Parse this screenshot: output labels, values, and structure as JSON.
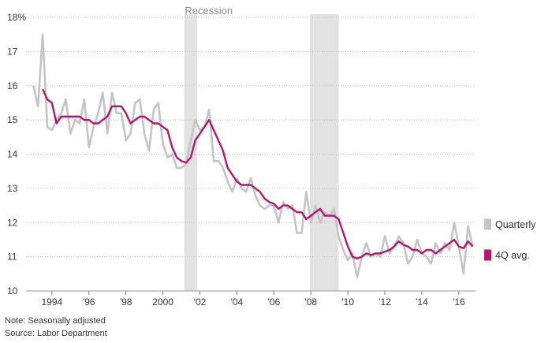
{
  "chart_data": {
    "type": "line",
    "title": "",
    "xlabel": "",
    "ylabel": "",
    "ylim": [
      10,
      18
    ],
    "xlim": [
      1992.6,
      2016.9
    ],
    "y_ticks": [
      10,
      11,
      12,
      13,
      14,
      15,
      16,
      17,
      18
    ],
    "y_tick_labels": [
      "10",
      "11",
      "12",
      "13",
      "14",
      "15",
      "16",
      "17",
      "18%"
    ],
    "x_ticks": [
      1994,
      1996,
      1998,
      2000,
      2002,
      2004,
      2006,
      2008,
      2010,
      2012,
      2014,
      2016
    ],
    "x_tick_labels": [
      "1994",
      "'96",
      "'98",
      "2000",
      "'02",
      "'04",
      "'06",
      "'08",
      "'10",
      "'12",
      "'14",
      "'16"
    ],
    "recession_label": "Recession",
    "recessions": [
      [
        2001.15,
        2001.85
      ],
      [
        2007.95,
        2009.5
      ]
    ],
    "grid": true,
    "legend_position": "right",
    "series": [
      {
        "name": "Quarterly",
        "color": "#c4c4c4",
        "points": [
          [
            1993.0,
            16.0
          ],
          [
            1993.25,
            15.4
          ],
          [
            1993.5,
            17.5
          ],
          [
            1993.75,
            14.8
          ],
          [
            1994.0,
            14.7
          ],
          [
            1994.25,
            15.0
          ],
          [
            1994.5,
            15.2
          ],
          [
            1994.75,
            15.6
          ],
          [
            1995.0,
            14.6
          ],
          [
            1995.25,
            15.0
          ],
          [
            1995.5,
            14.9
          ],
          [
            1995.75,
            15.6
          ],
          [
            1996.0,
            14.2
          ],
          [
            1996.25,
            14.8
          ],
          [
            1996.5,
            15.2
          ],
          [
            1996.75,
            15.8
          ],
          [
            1997.0,
            14.6
          ],
          [
            1997.25,
            15.8
          ],
          [
            1997.5,
            15.2
          ],
          [
            1997.75,
            15.2
          ],
          [
            1998.0,
            14.4
          ],
          [
            1998.25,
            14.6
          ],
          [
            1998.5,
            15.5
          ],
          [
            1998.75,
            15.6
          ],
          [
            1999.0,
            14.6
          ],
          [
            1999.25,
            14.1
          ],
          [
            1999.5,
            15.3
          ],
          [
            1999.75,
            15.5
          ],
          [
            2000.0,
            14.3
          ],
          [
            2000.25,
            13.9
          ],
          [
            2000.5,
            14.0
          ],
          [
            2000.75,
            13.6
          ],
          [
            2001.0,
            13.6
          ],
          [
            2001.25,
            13.7
          ],
          [
            2001.5,
            14.4
          ],
          [
            2001.75,
            15.0
          ],
          [
            2002.0,
            14.7
          ],
          [
            2002.25,
            14.8
          ],
          [
            2002.5,
            15.3
          ],
          [
            2002.75,
            13.8
          ],
          [
            2003.0,
            13.8
          ],
          [
            2003.25,
            13.6
          ],
          [
            2003.5,
            13.2
          ],
          [
            2003.75,
            12.9
          ],
          [
            2004.0,
            13.3
          ],
          [
            2004.25,
            13.0
          ],
          [
            2004.5,
            12.9
          ],
          [
            2004.75,
            13.3
          ],
          [
            2005.0,
            12.8
          ],
          [
            2005.25,
            12.5
          ],
          [
            2005.5,
            12.4
          ],
          [
            2005.75,
            12.5
          ],
          [
            2006.0,
            12.5
          ],
          [
            2006.25,
            12.0
          ],
          [
            2006.5,
            12.6
          ],
          [
            2006.75,
            12.4
          ],
          [
            2007.0,
            12.5
          ],
          [
            2007.25,
            11.7
          ],
          [
            2007.5,
            11.7
          ],
          [
            2007.75,
            12.9
          ],
          [
            2008.0,
            12.0
          ],
          [
            2008.25,
            12.5
          ],
          [
            2008.5,
            12.0
          ],
          [
            2008.75,
            12.3
          ],
          [
            2009.0,
            12.2
          ],
          [
            2009.25,
            12.4
          ],
          [
            2009.5,
            11.6
          ],
          [
            2009.75,
            11.2
          ],
          [
            2010.0,
            10.9
          ],
          [
            2010.25,
            11.1
          ],
          [
            2010.5,
            10.4
          ],
          [
            2010.75,
            11.0
          ],
          [
            2011.0,
            11.4
          ],
          [
            2011.25,
            11.0
          ],
          [
            2011.5,
            11.1
          ],
          [
            2011.75,
            11.0
          ],
          [
            2012.0,
            11.6
          ],
          [
            2012.25,
            11.1
          ],
          [
            2012.5,
            11.3
          ],
          [
            2012.75,
            11.6
          ],
          [
            2013.0,
            11.4
          ],
          [
            2013.25,
            10.8
          ],
          [
            2013.5,
            11.0
          ],
          [
            2013.75,
            11.5
          ],
          [
            2014.0,
            11.1
          ],
          [
            2014.25,
            11.0
          ],
          [
            2014.5,
            10.8
          ],
          [
            2014.75,
            11.4
          ],
          [
            2015.0,
            11.1
          ],
          [
            2015.25,
            11.4
          ],
          [
            2015.5,
            11.2
          ],
          [
            2015.75,
            12.0
          ],
          [
            2016.0,
            11.3
          ],
          [
            2016.25,
            10.5
          ],
          [
            2016.5,
            11.9
          ],
          [
            2016.75,
            11.3
          ]
        ]
      },
      {
        "name": "4Q avg.",
        "color": "#b5166e",
        "points": [
          [
            1993.5,
            15.9
          ],
          [
            1993.75,
            15.6
          ],
          [
            1994.0,
            15.5
          ],
          [
            1994.25,
            14.9
          ],
          [
            1994.5,
            15.1
          ],
          [
            1994.75,
            15.1
          ],
          [
            1995.0,
            15.1
          ],
          [
            1995.25,
            15.1
          ],
          [
            1995.5,
            15.1
          ],
          [
            1995.75,
            15.0
          ],
          [
            1996.0,
            15.0
          ],
          [
            1996.25,
            14.9
          ],
          [
            1996.5,
            14.9
          ],
          [
            1996.75,
            15.0
          ],
          [
            1997.0,
            15.1
          ],
          [
            1997.25,
            15.4
          ],
          [
            1997.5,
            15.4
          ],
          [
            1997.75,
            15.4
          ],
          [
            1998.0,
            15.2
          ],
          [
            1998.25,
            14.9
          ],
          [
            1998.5,
            15.0
          ],
          [
            1998.75,
            15.1
          ],
          [
            1999.0,
            15.1
          ],
          [
            1999.25,
            15.0
          ],
          [
            1999.5,
            14.9
          ],
          [
            1999.75,
            14.9
          ],
          [
            2000.0,
            14.8
          ],
          [
            2000.25,
            14.7
          ],
          [
            2000.5,
            14.2
          ],
          [
            2000.75,
            13.9
          ],
          [
            2001.0,
            13.8
          ],
          [
            2001.25,
            13.75
          ],
          [
            2001.5,
            13.9
          ],
          [
            2001.75,
            14.4
          ],
          [
            2002.0,
            14.6
          ],
          [
            2002.25,
            14.8
          ],
          [
            2002.5,
            15.0
          ],
          [
            2002.75,
            14.7
          ],
          [
            2003.0,
            14.4
          ],
          [
            2003.25,
            14.1
          ],
          [
            2003.5,
            13.6
          ],
          [
            2003.75,
            13.4
          ],
          [
            2004.0,
            13.2
          ],
          [
            2004.25,
            13.1
          ],
          [
            2004.5,
            13.1
          ],
          [
            2004.75,
            13.1
          ],
          [
            2005.0,
            13.0
          ],
          [
            2005.25,
            12.9
          ],
          [
            2005.5,
            12.7
          ],
          [
            2005.75,
            12.6
          ],
          [
            2006.0,
            12.55
          ],
          [
            2006.25,
            12.4
          ],
          [
            2006.5,
            12.5
          ],
          [
            2006.75,
            12.5
          ],
          [
            2007.0,
            12.4
          ],
          [
            2007.25,
            12.3
          ],
          [
            2007.5,
            12.3
          ],
          [
            2007.75,
            12.1
          ],
          [
            2008.0,
            12.2
          ],
          [
            2008.25,
            12.3
          ],
          [
            2008.5,
            12.4
          ],
          [
            2008.75,
            12.2
          ],
          [
            2009.0,
            12.2
          ],
          [
            2009.25,
            12.2
          ],
          [
            2009.5,
            12.1
          ],
          [
            2009.75,
            11.7
          ],
          [
            2010.0,
            11.3
          ],
          [
            2010.25,
            11.0
          ],
          [
            2010.5,
            10.95
          ],
          [
            2010.75,
            11.0
          ],
          [
            2011.0,
            11.1
          ],
          [
            2011.25,
            11.05
          ],
          [
            2011.5,
            11.1
          ],
          [
            2011.75,
            11.1
          ],
          [
            2012.0,
            11.15
          ],
          [
            2012.25,
            11.2
          ],
          [
            2012.5,
            11.3
          ],
          [
            2012.75,
            11.45
          ],
          [
            2013.0,
            11.35
          ],
          [
            2013.25,
            11.3
          ],
          [
            2013.5,
            11.2
          ],
          [
            2013.75,
            11.2
          ],
          [
            2014.0,
            11.1
          ],
          [
            2014.25,
            11.2
          ],
          [
            2014.5,
            11.2
          ],
          [
            2014.75,
            11.1
          ],
          [
            2015.0,
            11.2
          ],
          [
            2015.25,
            11.3
          ],
          [
            2015.5,
            11.4
          ],
          [
            2015.75,
            11.5
          ],
          [
            2016.0,
            11.3
          ],
          [
            2016.25,
            11.25
          ],
          [
            2016.5,
            11.45
          ],
          [
            2016.75,
            11.3
          ]
        ]
      }
    ]
  },
  "notes": {
    "adjustment": "Note: Seasonally adjusted",
    "source": "Source: Labor Department"
  }
}
